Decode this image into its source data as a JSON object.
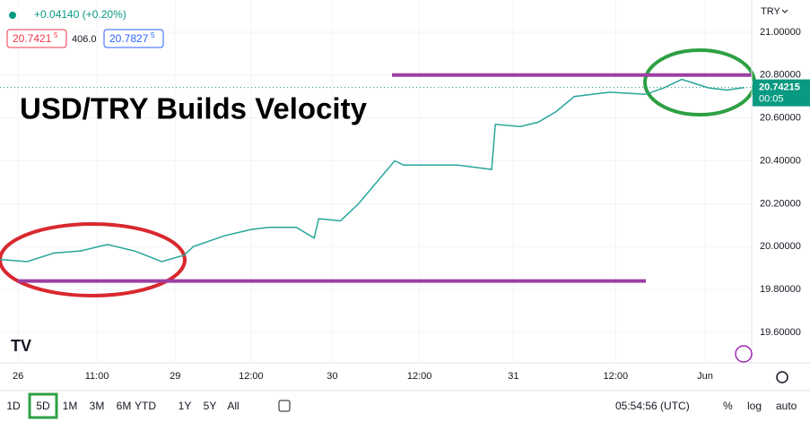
{
  "chart_data": {
    "type": "line",
    "title": "USD/TRY Builds Velocity",
    "header": {
      "change": "+0.04140 (+0.20%)",
      "bid": "20.7421",
      "bid_sup": "5",
      "spread": "406.0",
      "ask": "20.7827",
      "ask_sup": "5"
    },
    "currency": "TRY",
    "xlim": [
      0,
      100
    ],
    "xticks": [
      {
        "value": 2.4,
        "label": "26"
      },
      {
        "value": 12.9,
        "label": "11:00"
      },
      {
        "value": 23.3,
        "label": "29"
      },
      {
        "value": 33.4,
        "label": "12:00"
      },
      {
        "value": 44.2,
        "label": "30"
      },
      {
        "value": 55.8,
        "label": "12:00"
      },
      {
        "value": 68.3,
        "label": "31"
      },
      {
        "value": 81.9,
        "label": "12:00"
      },
      {
        "value": 93.8,
        "label": "Jun"
      }
    ],
    "ylim": [
      19.458,
      21.15
    ],
    "yticks": [
      {
        "value": 19.6,
        "label": "19.60000"
      },
      {
        "value": 19.8,
        "label": "19.80000"
      },
      {
        "value": 20.0,
        "label": "20.00000"
      },
      {
        "value": 20.2,
        "label": "20.20000"
      },
      {
        "value": 20.4,
        "label": "20.40000"
      },
      {
        "value": 20.6,
        "label": "20.60000"
      },
      {
        "value": 20.8,
        "label": "20.80000"
      },
      {
        "value": 21.0,
        "label": "21.00000"
      }
    ],
    "grid": true,
    "series": [
      {
        "color": "#26a69a",
        "x": [
          0,
          3.6,
          7.2,
          10.7,
          14.3,
          17.9,
          21.5,
          24.5,
          25.7,
          29.8,
          33.4,
          35.8,
          39.4,
          41.8,
          42.4,
          45.3,
          47.7,
          50.1,
          52.5,
          53.7,
          60.9,
          65.4,
          65.9,
          69.2,
          71.6,
          74.0,
          76.4,
          81.1,
          85.9,
          88.3,
          90.7,
          94.3,
          96.7,
          99.0
        ],
        "values": [
          19.94,
          19.93,
          19.97,
          19.98,
          20.01,
          19.98,
          19.93,
          19.96,
          20.0,
          20.05,
          20.08,
          20.09,
          20.09,
          20.04,
          20.13,
          20.12,
          20.2,
          20.3,
          20.4,
          20.38,
          20.38,
          20.36,
          20.57,
          20.56,
          20.58,
          20.63,
          20.7,
          20.72,
          20.71,
          20.74,
          20.78,
          20.74,
          20.73,
          20.742
        ]
      }
    ],
    "levels": [
      {
        "value": 20.8,
        "color": "#9c3fa3"
      },
      {
        "value": 19.84,
        "color": "#9c3fa3"
      }
    ],
    "last_price": {
      "value": 20.74215,
      "label": "20.74215",
      "countdown": "00:05",
      "color": "#089981"
    },
    "toolbar": {
      "ranges": [
        "1D",
        "5D",
        "1M",
        "3M",
        "6M",
        "YTD",
        "1Y",
        "5Y",
        "All"
      ],
      "active": 1,
      "time": "05:54:56 (UTC)",
      "percent": "%",
      "log": "log",
      "auto": "auto"
    }
  }
}
